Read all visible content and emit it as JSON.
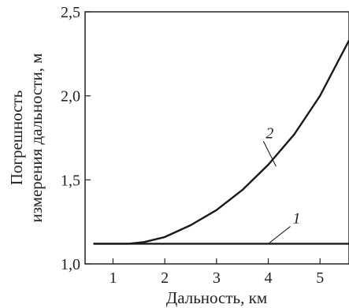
{
  "chart_data": {
    "type": "line",
    "xlabel": "Дальность, км",
    "ylabel_lines": [
      "Погрешность",
      "измерения дальности, м"
    ],
    "xlim": [
      0.46,
      5.56
    ],
    "ylim": [
      1.0,
      2.5
    ],
    "x_ticks": [
      1,
      2,
      3,
      4,
      5
    ],
    "y_ticks": [
      1.0,
      1.5,
      2.0,
      2.5
    ],
    "x_tick_labels": [
      "1",
      "2",
      "3",
      "4",
      "5"
    ],
    "y_tick_labels": [
      "1,0",
      "1,5",
      "2,0",
      "2,5"
    ],
    "grid": false,
    "series": [
      {
        "name": "1",
        "label_at": [
          4.0,
          1.12
        ],
        "x": [
          0.62,
          5.56
        ],
        "y": [
          1.12,
          1.12
        ]
      },
      {
        "name": "2",
        "label_at": [
          4.15,
          1.58
        ],
        "x": [
          0.62,
          1.3,
          1.6,
          2.0,
          2.5,
          3.0,
          3.5,
          4.0,
          4.5,
          5.0,
          5.56
        ],
        "y": [
          1.12,
          1.12,
          1.13,
          1.16,
          1.23,
          1.32,
          1.44,
          1.59,
          1.77,
          2.0,
          2.33
        ]
      }
    ]
  }
}
